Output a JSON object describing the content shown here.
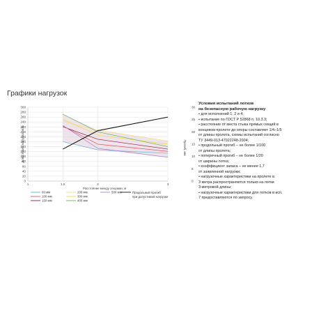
{
  "page": {
    "heading": "Графики нагрузок"
  },
  "chart_data": {
    "type": "line",
    "xlabel": "Расстояние между опорами, м",
    "ylabel_left": "Допустимая нагрузка, кг/м",
    "ylabel_right": "Прогиб, мм",
    "x_ticks": [
      "1",
      "1,5",
      "2",
      "3"
    ],
    "x_ticks_values": [
      1,
      1.5,
      2,
      3
    ],
    "y_left_ticks": [
      0,
      20,
      40,
      60,
      80,
      100,
      120,
      140,
      160,
      180,
      200,
      220,
      240,
      260,
      280,
      300
    ],
    "y_right_ticks": [
      0,
      5,
      10,
      15,
      20,
      25,
      30
    ],
    "xlim": [
      1,
      3
    ],
    "ylim_left": [
      0,
      300
    ],
    "ylim_right": [
      0,
      30
    ],
    "grid": true,
    "legend_position": "bottom-left",
    "series": [
      {
        "name": "60 мм",
        "color": "#5ab4e0",
        "axis": "left",
        "x": [
          1.5,
          2,
          3
        ],
        "y": [
          160,
          127,
          113
        ]
      },
      {
        "name": "100 мм",
        "color": "#e0525b",
        "axis": "left",
        "x": [
          1.5,
          2,
          3
        ],
        "y": [
          224,
          150,
          121
        ]
      },
      {
        "name": "150 мм",
        "color": "#8a1f3a",
        "axis": "left",
        "x": [
          1.5,
          2,
          3
        ],
        "y": [
          221,
          170,
          130
        ]
      },
      {
        "name": "200 мм",
        "color": "#f1e27c",
        "axis": "left",
        "x": [
          1.5,
          2,
          3
        ],
        "y": [
          241,
          207,
          163
        ]
      },
      {
        "name": "300 мм",
        "color": "#f3da3a",
        "axis": "left",
        "x": [
          1.5,
          2,
          3
        ],
        "y": [
          251,
          187,
          150
        ]
      },
      {
        "name": "400 мм",
        "color": "#6ab04c",
        "axis": "left",
        "x": [
          1.5,
          2,
          3
        ],
        "y": [
          272,
          200,
          140
        ]
      },
      {
        "name": "500 мм",
        "color": "#b07fc4",
        "axis": "left",
        "x": [
          1.5,
          2,
          3
        ],
        "y": [
          226,
          133,
          97
        ]
      },
      {
        "name": "Продольный прогиб при допустимой нагрузке",
        "color": "#111111",
        "axis": "right",
        "x": [
          1.5,
          2,
          3
        ],
        "y": [
          13,
          20.5,
          26
        ]
      }
    ],
    "colors": {
      "grid": "#d8d8d8",
      "fill": "#eadbe6"
    }
  },
  "legend": {
    "items": [
      {
        "label": "60 мм",
        "color": "#5ab4e0"
      },
      {
        "label": "100 мм",
        "color": "#e0525b"
      },
      {
        "label": "150 мм",
        "color": "#8a1f3a"
      },
      {
        "label": "200 мм",
        "color": "#f1e27c"
      },
      {
        "label": "300 мм",
        "color": "#f3da3a"
      },
      {
        "label": "400 мм",
        "color": "#6ab04c"
      },
      {
        "label": "500 мм",
        "color": "#b07fc4"
      }
    ],
    "deflection_label_line1": "Продольный прогиб",
    "deflection_label_line2": "при допустимой нагрузке"
  },
  "notes": {
    "title_line1": "Условия испытаний лотков",
    "title_line2": "на безопасную рабочую нагрузку",
    "lines": [
      "• для исполнений 1, 2 и 4;",
      "• испытание по ГОСТ Р 52868 п. 10.3.3;",
      "• расстояние от места стыка прямых секций в",
      "концевом пролете до опоры составляет 1/4–1/5",
      "от длины пролета, схемы испытаний согласно",
      "ТУ 3449-013-47022248-2004;",
      "• продольный прогиб – не более 1/100",
      "от длины пролета;",
      "• поперечный прогиб – не более 1/20",
      "от ширины лотка;",
      "• коэффициент запаса – не менее 1,7",
      "от заявленной нагрузки;",
      "• нагрузочные характеристики на пролете в",
      "3 метра распространяются только на лотки",
      "3-метровой длины;",
      "• нагрузочные характеристики для лотков в исп.",
      "7 предоставляются по запросу."
    ]
  }
}
